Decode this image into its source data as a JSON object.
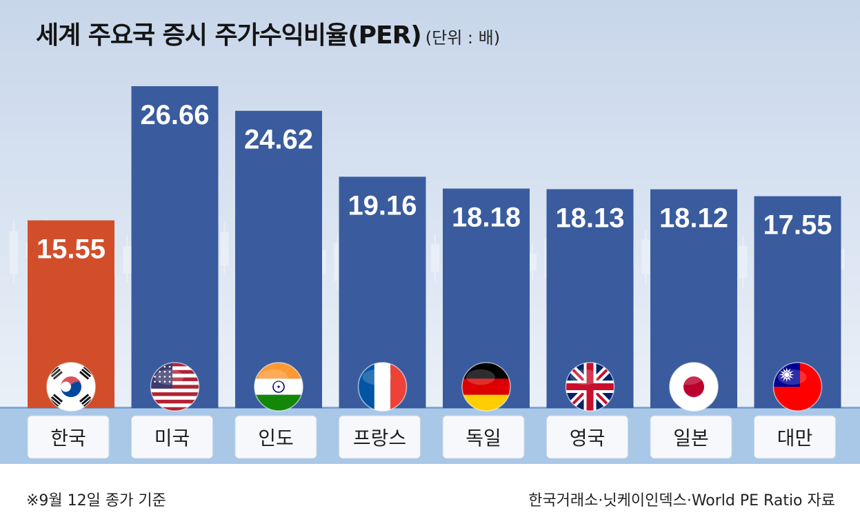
{
  "title": "세계 주요국 증시 주가수익비율(PER)",
  "unit": "(단위 : 배)",
  "note": "※9월 12일 종가 기준",
  "source": "한국거래소·닛케이인덱스·World PE Ratio 자료",
  "colors": {
    "highlight": "#d24e2b",
    "bar": "#3a5c9e",
    "value_text": "#ffffff",
    "label_box": "#f7f8fb",
    "baseline": "#8fb6de"
  },
  "chart_data": {
    "type": "bar",
    "categories": [
      "한국",
      "미국",
      "인도",
      "프랑스",
      "독일",
      "영국",
      "일본",
      "대만"
    ],
    "values": [
      15.55,
      26.66,
      24.62,
      19.16,
      18.18,
      18.13,
      18.12,
      17.55
    ],
    "value_labels": [
      "15.55",
      "26.66",
      "24.62",
      "19.16",
      "18.18",
      "18.13",
      "18.12",
      "17.55"
    ],
    "flags": [
      "korea-flag",
      "usa-flag",
      "india-flag",
      "france-flag",
      "germany-flag",
      "uk-flag",
      "japan-flag",
      "taiwan-flag"
    ],
    "highlight_index": 0,
    "title": "세계 주요국 증시 주가수익비율(PER)",
    "xlabel": "",
    "ylabel": "",
    "grid": false,
    "legend": "none"
  }
}
